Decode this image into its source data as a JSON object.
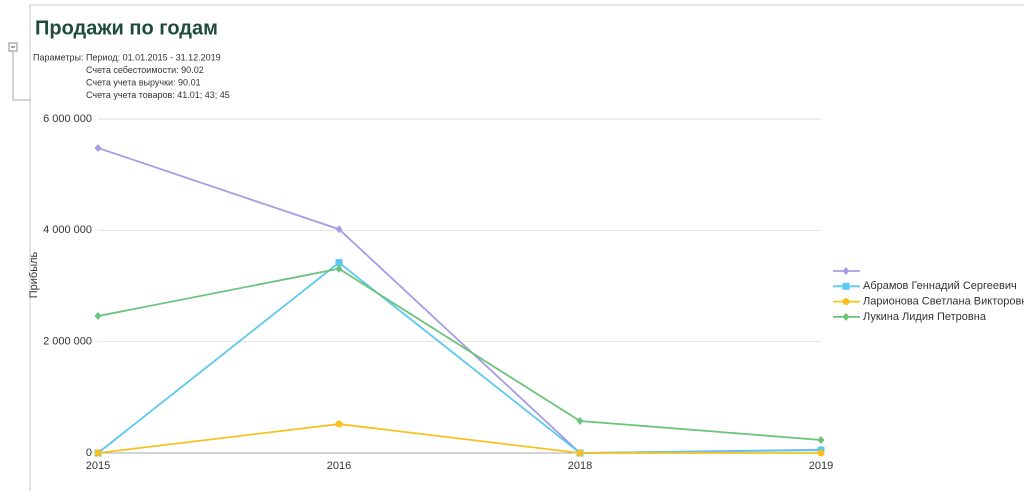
{
  "chart_data": {
    "type": "line",
    "title": "Продажи по годам",
    "parameters_label": "Параметры:",
    "parameters": [
      "Период: 01.01.2015 - 31.12.2019",
      "Счета себестоимости: 90.02",
      "Счета учета выручки: 90.01",
      "Счета учета товаров: 41.01; 43; 45"
    ],
    "y_label": "Прибыль",
    "categories": [
      "2015",
      "2016",
      "2018",
      "2019"
    ],
    "series": [
      {
        "color": "#a99be6",
        "marker": "diamond",
        "values": [
          5480000,
          4020000,
          0,
          60000
        ]
      },
      {
        "name": "Абрамов Геннадий Сергеевич",
        "color": "#5bc8f0",
        "marker": "square",
        "values": [
          0,
          3420000,
          0,
          50000
        ]
      },
      {
        "name": "Ларионова Светлана Викторовна",
        "color": "#f7c120",
        "marker": "circle",
        "values": [
          0,
          520000,
          0,
          0
        ]
      },
      {
        "name": "Лукина Лидия Петровна",
        "color": "#6cc47a",
        "marker": "diamond",
        "values": [
          2460000,
          3310000,
          575000,
          234000
        ]
      }
    ],
    "ylim": [
      0,
      6000000
    ],
    "yticks": [
      0,
      {
        "value": 2000000,
        "label": "2 000 000"
      },
      {
        "value": 4000000,
        "label": "4 000 000"
      },
      {
        "value": 6000000,
        "label": "6 000 000"
      }
    ],
    "grid": true,
    "legend": "right"
  }
}
